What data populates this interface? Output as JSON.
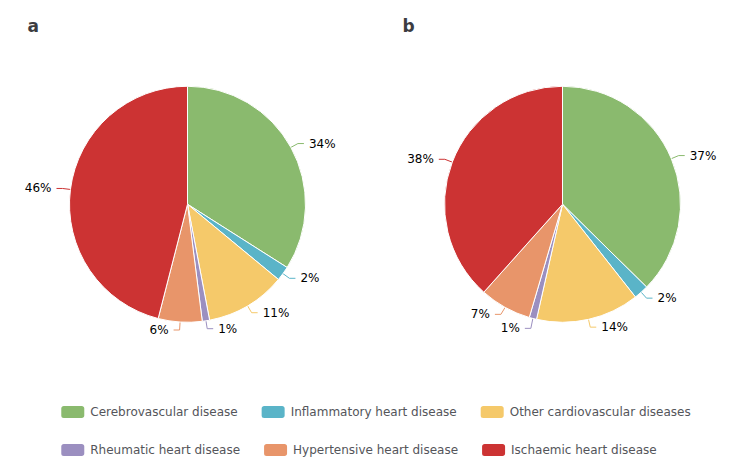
{
  "chart_data": [
    {
      "type": "pie",
      "title": "a",
      "categories": [
        "Cerebrovascular disease",
        "Inflammatory heart disease",
        "Other cardiovascular diseases",
        "Rheumatic heart disease",
        "Hypertensive heart disease",
        "Ischaemic heart disease"
      ],
      "values": [
        34,
        2,
        11,
        1,
        6,
        46
      ],
      "value_labels": [
        "34%",
        "2%",
        "11%",
        "1%",
        "6%",
        "46%"
      ],
      "colors": [
        "#8aba6e",
        "#5ab4c8",
        "#f5c96a",
        "#9b8fc0",
        "#e8956a",
        "#cc3333"
      ],
      "data_labels": true,
      "legend": "bottom"
    },
    {
      "type": "pie",
      "title": "b",
      "categories": [
        "Cerebrovascular disease",
        "Inflammatory heart disease",
        "Other cardiovascular diseases",
        "Rheumatic heart disease",
        "Hypertensive heart disease",
        "Ischaemic heart disease"
      ],
      "values": [
        37,
        2,
        14,
        1,
        7,
        38
      ],
      "value_labels": [
        "37%",
        "2%",
        "14%",
        "1%",
        "7%",
        "38%"
      ],
      "colors": [
        "#8aba6e",
        "#5ab4c8",
        "#f5c96a",
        "#9b8fc0",
        "#e8956a",
        "#cc3333"
      ],
      "data_labels": true,
      "legend": "bottom"
    }
  ]
}
